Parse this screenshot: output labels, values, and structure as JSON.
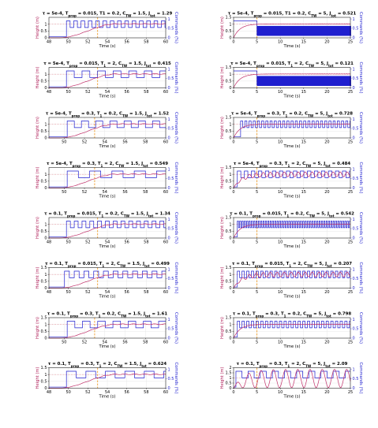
{
  "chart_data": [
    {
      "type": "line",
      "title": "τ = 5e-4, T_prop = 0.015, T1 = 0.2, C_TW = 1.5, J_tot = 1.29",
      "xlabel": "Time (s)",
      "ylabel": "Height (m)",
      "ylabel_right": "Commands (%)",
      "xticks": [
        "48",
        "50",
        "52",
        "54",
        "56",
        "58",
        "60"
      ],
      "yticks_left": [
        "0",
        "0.5",
        "1"
      ],
      "yticks_right": [
        "0",
        "0.5",
        "1"
      ],
      "xlim": [
        48,
        60
      ],
      "ylim": [
        0,
        1.5
      ],
      "setpoint": 1.0,
      "event_line": 53,
      "cmd_period": 0.75,
      "cmd_start": 49.8,
      "series": [
        {
          "name": "Height",
          "rise": "slow"
        },
        {
          "name": "Commands",
          "pattern": "square"
        }
      ]
    },
    {
      "type": "line",
      "title": "τ = 5e-4, T_prop = 0.015, T1 = 0.2, C_TW = 5, J_tot = 0.521",
      "xlabel": "Time (s)",
      "ylabel": "Height (m)",
      "ylabel_right": "Commands (%)",
      "xticks": [
        "0",
        "5",
        "10",
        "15",
        "20",
        "25"
      ],
      "yticks_left": [
        "0",
        "0.5",
        "1",
        "1.5"
      ],
      "yticks_right": [
        "0",
        "0.5",
        "1"
      ],
      "xlim": [
        0,
        25
      ],
      "ylim": [
        0,
        1.5
      ],
      "setpoint": 1.0,
      "event_line": 5,
      "cmd_period": 0.2,
      "cmd_start": 5,
      "series": [
        {
          "name": "Height",
          "rise": "fast"
        },
        {
          "name": "Commands",
          "pattern": "dense"
        }
      ]
    },
    {
      "type": "line",
      "title": "τ = 5e-4, T_prop = 0.015, T_1 = 2, C_TW = 1.5, J_tot = 0.415",
      "xlabel": "Time (s)",
      "ylabel": "Height (m)",
      "ylabel_right": "Commands (%)",
      "xticks": [
        "48",
        "50",
        "52",
        "54",
        "56",
        "58",
        "60"
      ],
      "yticks_left": [
        "0",
        "0.5",
        "1"
      ],
      "yticks_right": [
        "0",
        "0.5",
        "1"
      ],
      "xlim": [
        48,
        60
      ],
      "ylim": [
        0,
        1.5
      ],
      "setpoint": 1.0,
      "event_line": 53,
      "cmd_period": 1.6,
      "cmd_start": 49.8,
      "series": [
        {
          "name": "Height",
          "rise": "slow"
        },
        {
          "name": "Commands",
          "pattern": "square"
        }
      ]
    },
    {
      "type": "line",
      "title": "τ = 5e-4, T_prop = 0.015, T_1 = 2, C_TW = 5, J_tot = 0.121",
      "xlabel": "Time (s)",
      "ylabel": "Height (m)",
      "ylabel_right": "Commands (%)",
      "xticks": [
        "0",
        "5",
        "10",
        "15",
        "20",
        "25"
      ],
      "yticks_left": [
        "0",
        "0.5",
        "1",
        "1.5"
      ],
      "yticks_right": [
        "0",
        "0.5",
        "1"
      ],
      "xlim": [
        0,
        25
      ],
      "ylim": [
        0,
        1.5
      ],
      "setpoint": 1.0,
      "event_line": 5,
      "cmd_period": 0.2,
      "cmd_start": 5,
      "series": [
        {
          "name": "Height",
          "rise": "fast"
        },
        {
          "name": "Commands",
          "pattern": "dense"
        }
      ]
    },
    {
      "type": "line",
      "title": "τ = 5e-4, T_prop = 0.3, T_1 = 0.2, C_TW = 1.5, J_tot = 1.52",
      "xlabel": "Time (s)",
      "ylabel": "Height (m)",
      "ylabel_right": "Commands (%)",
      "xticks": [
        "50",
        "52",
        "54",
        "56",
        "58",
        "60"
      ],
      "yticks_left": [
        "0",
        "0.5",
        "1"
      ],
      "yticks_right": [
        "0",
        "0.5",
        "1"
      ],
      "xlim": [
        48.5,
        60
      ],
      "ylim": [
        0,
        1.5
      ],
      "setpoint": 1.0,
      "event_line": 53,
      "cmd_period": 1.4,
      "cmd_start": 50.3,
      "series": [
        {
          "name": "Height",
          "rise": "slow"
        },
        {
          "name": "Commands",
          "pattern": "square"
        }
      ]
    },
    {
      "type": "line",
      "title": "τ = 5e-4, T_prop = 0.3, T_1 = 0.2, C_TW = 5, J_tot = 0.728",
      "xlabel": "Time (s)",
      "ylabel": "Height (m)",
      "ylabel_right": "Commands (%)",
      "xticks": [
        "0",
        "5",
        "10",
        "15",
        "20",
        "25"
      ],
      "yticks_left": [
        "0",
        "0.5",
        "1",
        "1.5"
      ],
      "yticks_right": [
        "0",
        "0.5",
        "1"
      ],
      "xlim": [
        0,
        25
      ],
      "ylim": [
        0,
        1.5
      ],
      "setpoint": 1.0,
      "event_line": 5,
      "cmd_period": 0.9,
      "cmd_start": 1.5,
      "series": [
        {
          "name": "Height",
          "rise": "fast"
        },
        {
          "name": "Commands",
          "pattern": "square"
        }
      ]
    },
    {
      "type": "line",
      "title": "τ = 5e-4, T_prop = 0.3, T_1 = 2, C_TW = 1.5, J_tot = 0.549",
      "xlabel": "Time (s)",
      "ylabel": "Height (m)",
      "ylabel_right": "Commands (%)",
      "xticks": [
        "50",
        "52",
        "54",
        "56",
        "58",
        "60"
      ],
      "yticks_left": [
        "0",
        "0.5",
        "1"
      ],
      "yticks_right": [
        "0",
        "0.5",
        "1"
      ],
      "xlim": [
        48.5,
        60
      ],
      "ylim": [
        0,
        1.5
      ],
      "setpoint": 1.0,
      "event_line": 53,
      "cmd_period": 2.2,
      "cmd_start": 50.3,
      "series": [
        {
          "name": "Height",
          "rise": "slow"
        },
        {
          "name": "Commands",
          "pattern": "square"
        }
      ]
    },
    {
      "type": "line",
      "title": "τ = 5e-4, T_prop = 0.3, T_1 = 2, C_TW = 5, J_tot = 0.484",
      "xlabel": "Time (s)",
      "ylabel": "Height (m)",
      "ylabel_right": "Commands (%)",
      "xticks": [
        "0",
        "5",
        "10",
        "15",
        "20",
        "25"
      ],
      "yticks_left": [
        "0",
        "0.5",
        "1",
        "1.5"
      ],
      "yticks_right": [
        "0",
        "0.5",
        "1"
      ],
      "xlim": [
        0,
        25
      ],
      "ylim": [
        0,
        1.5
      ],
      "setpoint": 1.0,
      "event_line": 5,
      "cmd_period": 1.5,
      "cmd_start": 0.8,
      "series": [
        {
          "name": "Height",
          "rise": "oscillating"
        },
        {
          "name": "Commands",
          "pattern": "square"
        }
      ]
    },
    {
      "type": "line",
      "title": "τ = 0.1, T_prop = 0.015, T_1 = 0.2, C_TW = 1.5, J_tot = 1.34",
      "xlabel": "Time (s)",
      "ylabel": "Height (m)",
      "ylabel_right": "Commands (%)",
      "xticks": [
        "48",
        "50",
        "52",
        "54",
        "56",
        "58",
        "60"
      ],
      "yticks_left": [
        "0",
        "0.5",
        "1"
      ],
      "yticks_right": [
        "0",
        "0.5",
        "1"
      ],
      "xlim": [
        48,
        60
      ],
      "ylim": [
        0,
        1.5
      ],
      "setpoint": 1.0,
      "event_line": 53,
      "cmd_period": 0.8,
      "cmd_start": 49.8,
      "series": [
        {
          "name": "Height",
          "rise": "slow"
        },
        {
          "name": "Commands",
          "pattern": "square"
        }
      ]
    },
    {
      "type": "line",
      "title": "τ = 0.1, T_prop = 0.015, T_1 = 0.2, C_TW = 5, J_tot = 0.542",
      "xlabel": "Time (s)",
      "ylabel": "Height (m)",
      "ylabel_right": "Commands (%)",
      "xticks": [
        "0",
        "5",
        "10",
        "15",
        "20",
        "25"
      ],
      "yticks_left": [
        "0",
        "0.5",
        "1",
        "1.5"
      ],
      "yticks_right": [
        "0",
        "0.5",
        "1"
      ],
      "xlim": [
        0,
        25
      ],
      "ylim": [
        0,
        1.5
      ],
      "setpoint": 1.0,
      "event_line": 5,
      "cmd_period": 0.5,
      "cmd_start": 0.8,
      "series": [
        {
          "name": "Height",
          "rise": "fast"
        },
        {
          "name": "Commands",
          "pattern": "square"
        }
      ]
    },
    {
      "type": "line",
      "title": "τ = 0.1, T_prop = 0.015, T_1 = 2, C_TW = 1.5, J_tot = 0.499",
      "xlabel": "Time (s)",
      "ylabel": "Height (m)",
      "ylabel_right": "Commands (%)",
      "xticks": [
        "48",
        "50",
        "52",
        "54",
        "56",
        "58",
        "60"
      ],
      "yticks_left": [
        "0",
        "0.5",
        "1",
        "1.5"
      ],
      "yticks_right": [
        "0",
        "0.5",
        "1"
      ],
      "xlim": [
        48,
        60
      ],
      "ylim": [
        0,
        1.5
      ],
      "setpoint": 1.0,
      "event_line": 53,
      "cmd_period": 1.0,
      "cmd_start": 49.6,
      "series": [
        {
          "name": "Height",
          "rise": "slow"
        },
        {
          "name": "Commands",
          "pattern": "square"
        }
      ]
    },
    {
      "type": "line",
      "title": "τ = 0.1, T_prop = 0.015, T_1 = 2, C_TW = 5, J_tot = 0.207",
      "xlabel": "Time (s)",
      "ylabel": "Height (m)",
      "ylabel_right": "Commands (%)",
      "xticks": [
        "0",
        "5",
        "10",
        "15",
        "20",
        "25"
      ],
      "yticks_left": [
        "0",
        "0.5",
        "1",
        "1.5"
      ],
      "yticks_right": [
        "0",
        "0.5",
        "1"
      ],
      "xlim": [
        0,
        25
      ],
      "ylim": [
        0,
        1.5
      ],
      "setpoint": 1.0,
      "event_line": 5,
      "cmd_period": 1.0,
      "cmd_start": 0.8,
      "series": [
        {
          "name": "Height",
          "rise": "oscillating"
        },
        {
          "name": "Commands",
          "pattern": "square"
        }
      ]
    },
    {
      "type": "line",
      "title": "τ = 0.1, T_prop = 0.3, T_1 = 0.2, C_TW = 1.5, J_tot = 1.61",
      "xlabel": "Time (s)",
      "ylabel": "Height (m)",
      "ylabel_right": "Commands (%)",
      "xticks": [
        "50",
        "52",
        "54",
        "56",
        "58",
        "60"
      ],
      "yticks_left": [
        "0",
        "0.5",
        "1",
        "1.5"
      ],
      "yticks_right": [
        "0",
        "0.5",
        "1"
      ],
      "xlim": [
        48.5,
        60
      ],
      "ylim": [
        0,
        1.5
      ],
      "setpoint": 1.0,
      "event_line": 53,
      "cmd_period": 1.5,
      "cmd_start": 50.3,
      "series": [
        {
          "name": "Height",
          "rise": "slow"
        },
        {
          "name": "Commands",
          "pattern": "square"
        }
      ]
    },
    {
      "type": "line",
      "title": "τ = 0.1, T_prop = 0.3, T_1 = 0.2, C_TW = 5, J_tot = 0.798",
      "xlabel": "Time (s)",
      "ylabel": "Height (m)",
      "ylabel_right": "Commands (%)",
      "xticks": [
        "0",
        "5",
        "10",
        "15",
        "20",
        "25"
      ],
      "yticks_left": [
        "0",
        "0.5",
        "1",
        "1.5"
      ],
      "yticks_right": [
        "0",
        "0.5",
        "1"
      ],
      "xlim": [
        0,
        25
      ],
      "ylim": [
        0,
        1.5
      ],
      "setpoint": 1.0,
      "event_line": 5,
      "cmd_period": 1.0,
      "cmd_start": 0.8,
      "series": [
        {
          "name": "Height",
          "rise": "fast"
        },
        {
          "name": "Commands",
          "pattern": "square"
        }
      ]
    },
    {
      "type": "line",
      "title": "τ = 0.1, T_prop = 0.3, T_1 = 2, C_TW = 1.5, J_tot = 0.624",
      "xlabel": "Time (s)",
      "ylabel": "Height (m)",
      "ylabel_right": "Commands (%)",
      "xticks": [
        "48",
        "50",
        "52",
        "54",
        "56",
        "58",
        "60"
      ],
      "yticks_left": [
        "0",
        "0.5",
        "1",
        "1.5"
      ],
      "yticks_right": [
        "0",
        "0.5",
        "1"
      ],
      "xlim": [
        48,
        60
      ],
      "ylim": [
        0,
        1.5
      ],
      "setpoint": 1.0,
      "event_line": 53,
      "cmd_period": 2.0,
      "cmd_start": 49.8,
      "series": [
        {
          "name": "Height",
          "rise": "slow"
        },
        {
          "name": "Commands",
          "pattern": "square"
        }
      ]
    },
    {
      "type": "line",
      "title": "τ = 0.1, T_prop = 0.3, T_1 = 2, C_TW = 5, J_tot = 2.09",
      "xlabel": "Time (s)",
      "ylabel": "Height (m)",
      "ylabel_right": "Commands (%)",
      "xticks": [
        "0",
        "5",
        "10",
        "15",
        "20",
        "25"
      ],
      "yticks_left": [
        "0",
        "0.5",
        "1",
        "1.5",
        "2"
      ],
      "yticks_right": [
        "0",
        "0.5",
        "1"
      ],
      "xlim": [
        0,
        25
      ],
      "ylim": [
        0,
        2
      ],
      "setpoint": 1.0,
      "event_line": 5,
      "cmd_period": 2.6,
      "cmd_start": 0.5,
      "series": [
        {
          "name": "Height",
          "rise": "large-oscillating"
        },
        {
          "name": "Commands",
          "pattern": "square"
        }
      ]
    }
  ],
  "colors": {
    "height": "#c0306a",
    "commands": "#1f1fcf",
    "setpoint": "#e8a0a8",
    "event": "#f0a030",
    "grid": "#e2e2e2"
  }
}
